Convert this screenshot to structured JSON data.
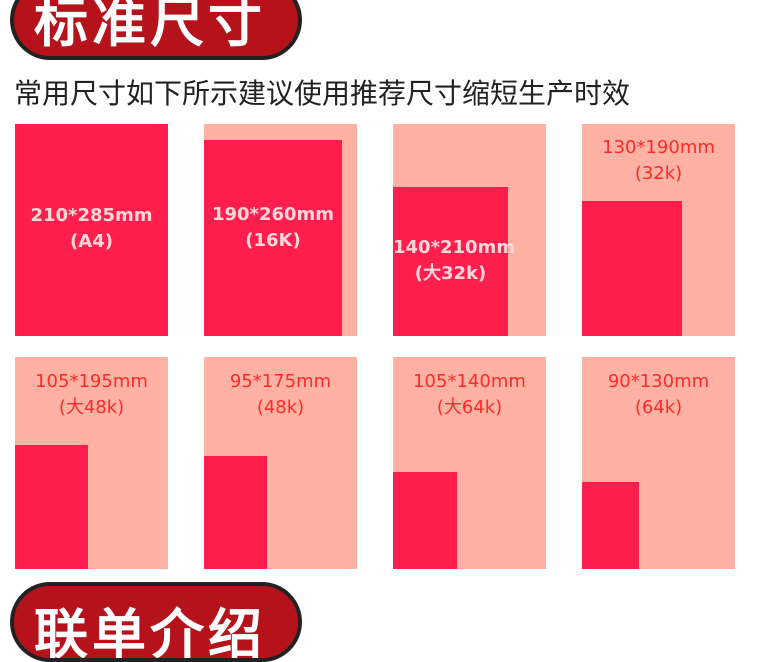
{
  "header": {
    "title": "标准尺寸"
  },
  "subtitle": "常用尺寸如下所示建议使用推荐尺寸缩短生产时效",
  "cards": [
    {
      "size": "210*285mm",
      "name": "(A4)"
    },
    {
      "size": "190*260mm",
      "name": "(16K)"
    },
    {
      "size": "140*210mm",
      "name": "(大32k)"
    },
    {
      "size": "130*190mm",
      "name": "(32k)"
    },
    {
      "size": "105*195mm",
      "name": "(大48k)"
    },
    {
      "size": "95*175mm",
      "name": "(48k)"
    },
    {
      "size": "105*140mm",
      "name": "(大64k)"
    },
    {
      "size": "90*130mm",
      "name": "(64k)"
    }
  ],
  "colors": {
    "badge": "#b5121b",
    "card_bg": "#ffb2a3",
    "fill": "#ff1e4d",
    "label_out": "#ff2a2a"
  },
  "footer": {
    "title": "联单介绍"
  }
}
